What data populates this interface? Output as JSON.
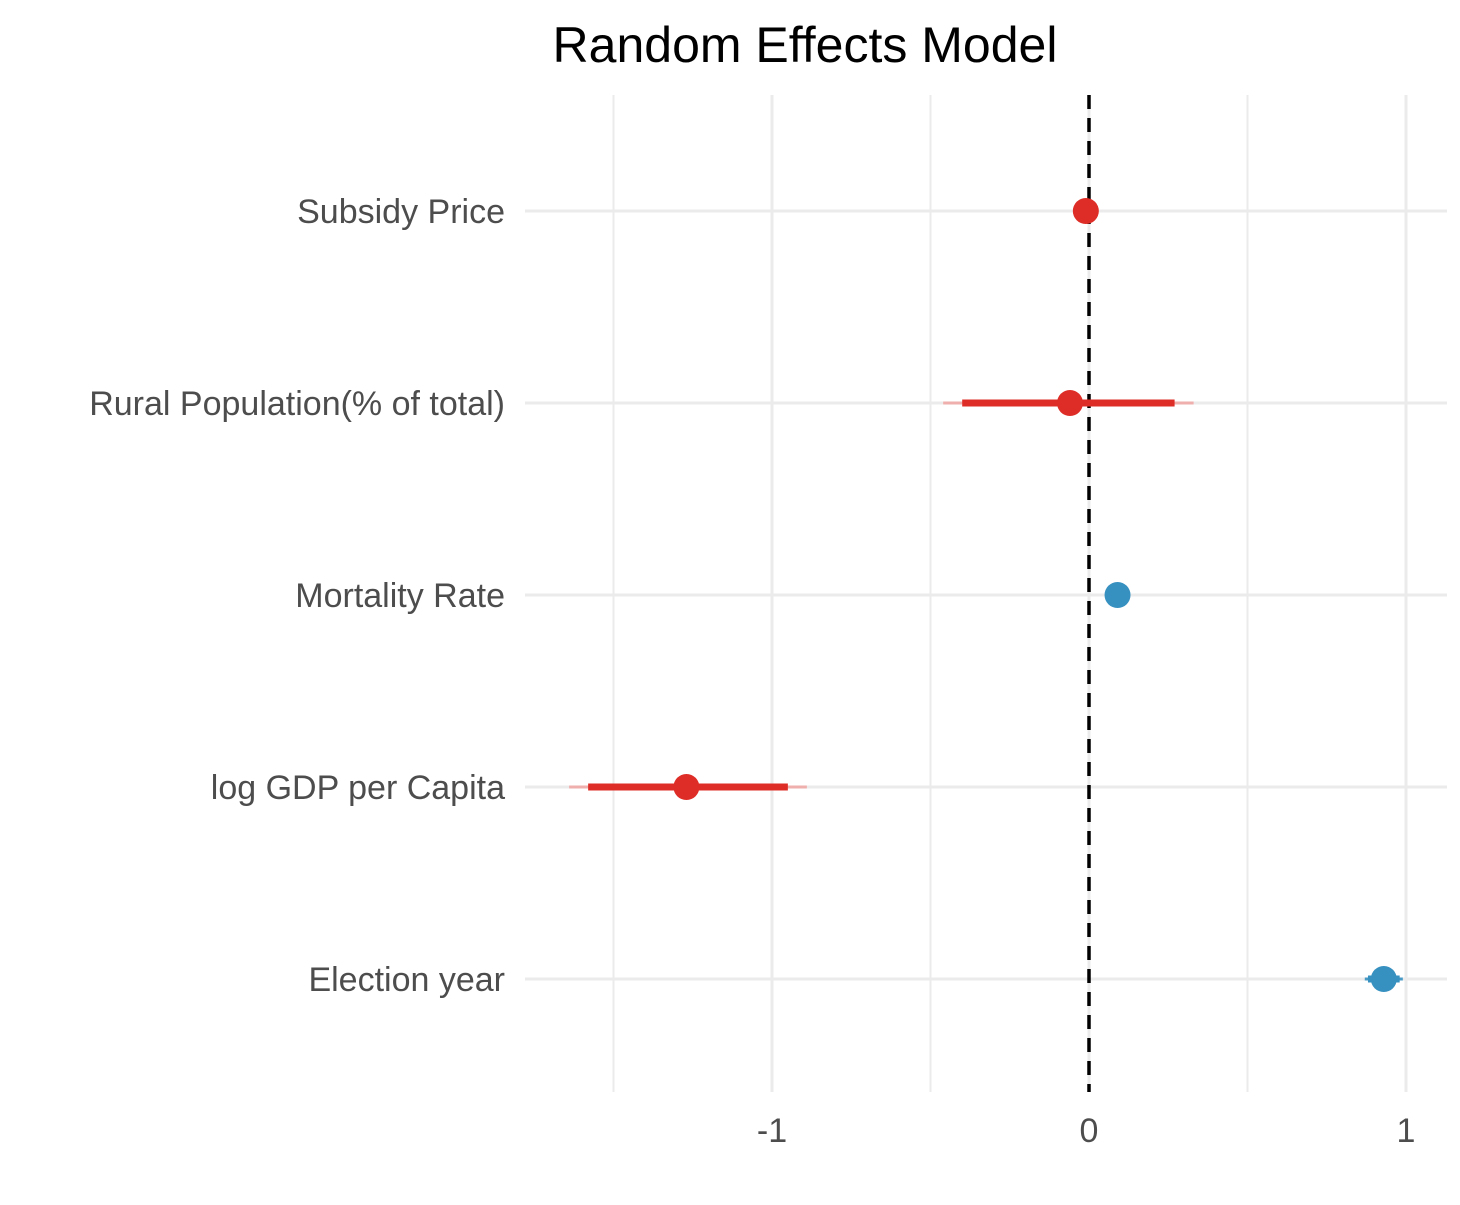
{
  "chart_data": {
    "type": "scatter",
    "subtype": "coefficient-plot",
    "title": "Random Effects Model",
    "xlabel": "",
    "ylabel": "",
    "xlim": [
      -1.75,
      1.13
    ],
    "x_ticks": [
      -1,
      0,
      1
    ],
    "x_tick_labels": [
      "-1",
      "0",
      "1"
    ],
    "reference_line": {
      "x": 0,
      "style": "dashed"
    },
    "grid": true,
    "legend": "none",
    "colors": {
      "negative": "#de2d26",
      "positive": "#3690c0",
      "ci_outer_negative": "#f0a8a5",
      "grid": "#ebebeb",
      "ref": "#000000"
    },
    "terms": [
      {
        "label": "Subsidy Price",
        "estimate": -0.01,
        "ci_inner": [
          -0.03,
          0.01
        ],
        "ci_outer": [
          -0.04,
          0.02
        ],
        "sign": "negative"
      },
      {
        "label": "Rural Population(% of total)",
        "estimate": -0.06,
        "ci_inner": [
          -0.4,
          0.27
        ],
        "ci_outer": [
          -0.46,
          0.33
        ],
        "sign": "negative"
      },
      {
        "label": "Mortality Rate",
        "estimate": 0.09,
        "ci_inner": [
          0.08,
          0.1
        ],
        "ci_outer": [
          0.07,
          0.11
        ],
        "sign": "positive"
      },
      {
        "label": "log GDP per Capita",
        "estimate": -1.27,
        "ci_inner": [
          -1.58,
          -0.95
        ],
        "ci_outer": [
          -1.64,
          -0.89
        ],
        "sign": "negative"
      },
      {
        "label": "Election year",
        "estimate": 0.93,
        "ci_inner": [
          0.88,
          0.98
        ],
        "ci_outer": [
          0.87,
          0.99
        ],
        "sign": "positive"
      }
    ]
  }
}
